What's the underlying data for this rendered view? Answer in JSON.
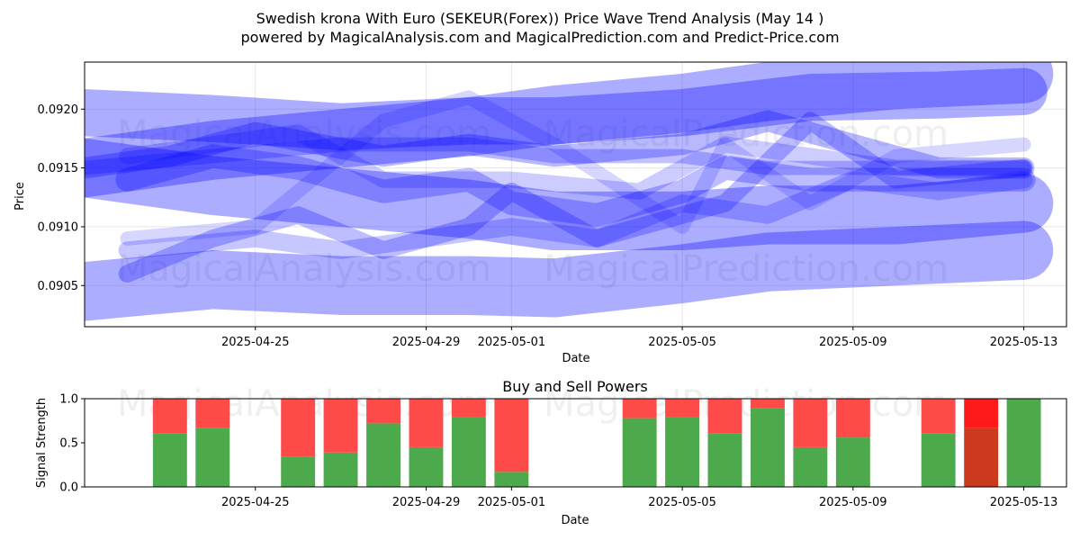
{
  "header": {
    "title": "Swedish krona With Euro (SEKEUR(Forex)) Price Wave Trend Analysis (May 14 )",
    "subtitle": "powered by MagicalAnalysis.com and MagicalPrediction.com and Predict-Price.com"
  },
  "watermarks": [
    "MagicalAnalysis.com",
    "MagicalPrediction.com"
  ],
  "chart_data": [
    {
      "type": "area",
      "title": "",
      "xlabel": "Date",
      "ylabel": "Price",
      "x_range": [
        "2025-04-21",
        "2025-05-14"
      ],
      "ylim": [
        0.09015,
        0.0924
      ],
      "y_ticks": [
        0.0905,
        0.091,
        0.0915,
        0.092
      ],
      "y_tick_labels": [
        "0.0905",
        "0.0910",
        "0.0915",
        "0.0920"
      ],
      "x_ticks": [
        "2025-04-25",
        "2025-04-29",
        "2025-05-01",
        "2025-05-05",
        "2025-05-09",
        "2025-05-13"
      ],
      "grid": true,
      "band_color": "#0000ff",
      "series": [
        {
          "width": 0.0004,
          "opacity": 0.32,
          "x": [
            "2025-04-21",
            "2025-04-24",
            "2025-04-27",
            "2025-04-30",
            "2025-05-02",
            "2025-05-05",
            "2025-05-08",
            "2025-05-11",
            "2025-05-13"
          ],
          "y": [
            0.09197,
            0.09192,
            0.09185,
            0.0919,
            0.0919,
            0.09197,
            0.0921,
            0.09212,
            0.09215
          ]
        },
        {
          "width": 0.0005,
          "opacity": 0.32,
          "x": [
            "2025-04-21",
            "2025-04-24",
            "2025-04-27",
            "2025-04-30",
            "2025-05-02",
            "2025-05-05",
            "2025-05-07",
            "2025-05-10",
            "2025-05-13"
          ],
          "y": [
            0.0915,
            0.09165,
            0.09175,
            0.09185,
            0.09195,
            0.09205,
            0.09215,
            0.09225,
            0.0923
          ]
        },
        {
          "width": 0.0005,
          "opacity": 0.32,
          "x": [
            "2025-04-21",
            "2025-04-24",
            "2025-04-27",
            "2025-04-30",
            "2025-05-02",
            "2025-05-05",
            "2025-05-07",
            "2025-05-10",
            "2025-05-13"
          ],
          "y": [
            0.0915,
            0.09135,
            0.09125,
            0.09115,
            0.09105,
            0.09105,
            0.0911,
            0.0911,
            0.0912
          ]
        },
        {
          "width": 0.0005,
          "opacity": 0.32,
          "x": [
            "2025-04-21",
            "2025-04-24",
            "2025-04-27",
            "2025-04-30",
            "2025-05-02",
            "2025-05-05",
            "2025-05-07",
            "2025-05-10",
            "2025-05-13"
          ],
          "y": [
            0.09045,
            0.09055,
            0.0905,
            0.0905,
            0.09048,
            0.0906,
            0.0907,
            0.09075,
            0.0908
          ]
        },
        {
          "width": 0.00018,
          "opacity": 0.28,
          "x": [
            "2025-04-21",
            "2025-04-23",
            "2025-04-25",
            "2025-04-28",
            "2025-04-30",
            "2025-05-02",
            "2025-05-05",
            "2025-05-07",
            "2025-05-09",
            "2025-05-11",
            "2025-05-13"
          ],
          "y": [
            0.0915,
            0.0916,
            0.0918,
            0.0916,
            0.0917,
            0.0916,
            0.0917,
            0.0919,
            0.0917,
            0.0915,
            0.0915
          ]
        },
        {
          "width": 0.0002,
          "opacity": 0.26,
          "x": [
            "2025-04-22",
            "2025-04-24",
            "2025-04-26",
            "2025-04-28",
            "2025-04-30",
            "2025-05-01",
            "2025-05-03",
            "2025-05-05",
            "2025-05-06",
            "2025-05-08",
            "2025-05-10",
            "2025-05-13"
          ],
          "y": [
            0.0914,
            0.0916,
            0.0915,
            0.0913,
            0.0914,
            0.0912,
            0.0911,
            0.0913,
            0.0915,
            0.0914,
            0.0914,
            0.0914
          ]
        },
        {
          "width": 0.00015,
          "opacity": 0.26,
          "x": [
            "2025-04-22",
            "2025-04-24",
            "2025-04-26",
            "2025-04-28",
            "2025-04-30",
            "2025-05-01",
            "2025-05-03",
            "2025-05-05",
            "2025-05-06",
            "2025-05-08",
            "2025-05-10",
            "2025-05-13"
          ],
          "y": [
            0.0906,
            0.0909,
            0.0911,
            0.0908,
            0.091,
            0.0913,
            0.0909,
            0.0911,
            0.0912,
            0.0919,
            0.0914,
            0.0915
          ]
        },
        {
          "width": 0.00015,
          "opacity": 0.22,
          "x": [
            "2025-04-22",
            "2025-04-25",
            "2025-04-27",
            "2025-04-29",
            "2025-05-01",
            "2025-05-03",
            "2025-05-05",
            "2025-05-07",
            "2025-05-09",
            "2025-05-11",
            "2025-05-13"
          ],
          "y": [
            0.0908,
            0.0909,
            0.0908,
            0.0909,
            0.091,
            0.0909,
            0.0912,
            0.0911,
            0.0914,
            0.0913,
            0.0914
          ]
        },
        {
          "width": 0.00012,
          "opacity": 0.16,
          "x": [
            "2025-04-22",
            "2025-04-25",
            "2025-04-28",
            "2025-04-30",
            "2025-05-02",
            "2025-05-05",
            "2025-05-06",
            "2025-05-08",
            "2025-05-10",
            "2025-05-13"
          ],
          "y": [
            0.0909,
            0.091,
            0.0919,
            0.0921,
            0.0917,
            0.091,
            0.0917,
            0.0912,
            0.0916,
            0.0917
          ]
        },
        {
          "width": 0.00014,
          "opacity": 0.2,
          "x": [
            "2025-04-22",
            "2025-04-24",
            "2025-04-26",
            "2025-04-28",
            "2025-05-01",
            "2025-05-04",
            "2025-05-06",
            "2025-05-08",
            "2025-05-10",
            "2025-05-13"
          ],
          "y": [
            0.0916,
            0.0917,
            0.0918,
            0.0914,
            0.0914,
            0.0913,
            0.0917,
            0.0916,
            0.0915,
            0.0915
          ]
        },
        {
          "width": 0.00012,
          "opacity": 0.24,
          "x": [
            "2025-04-21",
            "2025-04-24",
            "2025-04-27",
            "2025-04-30",
            "2025-05-02",
            "2025-05-05",
            "2025-05-07",
            "2025-05-10",
            "2025-05-13"
          ],
          "y": [
            0.0915,
            0.0916,
            0.0917,
            0.0917,
            0.0916,
            0.0916,
            0.0915,
            0.0915,
            0.0915
          ]
        }
      ]
    },
    {
      "type": "bar",
      "title": "Buy and Sell Powers",
      "xlabel": "Date",
      "ylabel": "Signal Strength",
      "ylim": [
        0,
        1
      ],
      "y_ticks": [
        0,
        0.5,
        1
      ],
      "y_tick_labels": [
        "0.0",
        "0.5",
        "1.0"
      ],
      "x_range": [
        "2025-04-21",
        "2025-05-14"
      ],
      "x_ticks": [
        "2025-04-25",
        "2025-04-29",
        "2025-05-01",
        "2025-05-05",
        "2025-05-09",
        "2025-05-13"
      ],
      "buy_color": "#4caa4c",
      "sell_color": "#ff4a4a",
      "highlight_buy_color": "#cc3a1e",
      "highlight_sell_color": "#ff1a1a",
      "bars": [
        {
          "date": "2025-04-23",
          "buy": 0.61,
          "sell": 0.39
        },
        {
          "date": "2025-04-24",
          "buy": 0.67,
          "sell": 0.33
        },
        {
          "date": "2025-04-26",
          "buy": 0.34,
          "sell": 0.66
        },
        {
          "date": "2025-04-27",
          "buy": 0.39,
          "sell": 0.61
        },
        {
          "date": "2025-04-28",
          "buy": 0.72,
          "sell": 0.28
        },
        {
          "date": "2025-04-29",
          "buy": 0.45,
          "sell": 0.55
        },
        {
          "date": "2025-04-30",
          "buy": 0.79,
          "sell": 0.21
        },
        {
          "date": "2025-05-01",
          "buy": 0.17,
          "sell": 0.83
        },
        {
          "date": "2025-05-04",
          "buy": 0.78,
          "sell": 0.22
        },
        {
          "date": "2025-05-05",
          "buy": 0.79,
          "sell": 0.21
        },
        {
          "date": "2025-05-06",
          "buy": 0.61,
          "sell": 0.39
        },
        {
          "date": "2025-05-07",
          "buy": 0.89,
          "sell": 0.11
        },
        {
          "date": "2025-05-08",
          "buy": 0.45,
          "sell": 0.55
        },
        {
          "date": "2025-05-09",
          "buy": 0.56,
          "sell": 0.44
        },
        {
          "date": "2025-05-11",
          "buy": 0.61,
          "sell": 0.39
        },
        {
          "date": "2025-05-12",
          "buy": 0.67,
          "sell": 0.33,
          "highlight": true
        },
        {
          "date": "2025-05-13",
          "buy": 1.0,
          "sell": 0.0
        }
      ]
    }
  ]
}
